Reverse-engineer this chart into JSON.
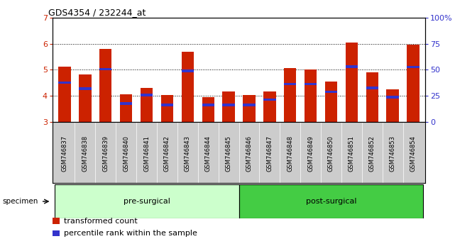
{
  "title": "GDS4354 / 232244_at",
  "samples": [
    "GSM746837",
    "GSM746838",
    "GSM746839",
    "GSM746840",
    "GSM746841",
    "GSM746842",
    "GSM746843",
    "GSM746844",
    "GSM746845",
    "GSM746846",
    "GSM746847",
    "GSM746848",
    "GSM746849",
    "GSM746850",
    "GSM746851",
    "GSM746852",
    "GSM746853",
    "GSM746854"
  ],
  "red_values": [
    5.12,
    4.82,
    5.8,
    4.05,
    4.3,
    4.02,
    5.7,
    3.95,
    4.15,
    4.02,
    4.15,
    5.05,
    5.02,
    4.55,
    6.05,
    4.9,
    4.25,
    5.95
  ],
  "blue_values": [
    4.5,
    4.28,
    5.02,
    3.7,
    4.02,
    3.65,
    4.95,
    3.65,
    3.65,
    3.65,
    3.85,
    4.45,
    4.45,
    4.15,
    5.12,
    4.3,
    3.95,
    5.1
  ],
  "ymin": 3.0,
  "ymax": 7.0,
  "yticks": [
    3,
    4,
    5,
    6,
    7
  ],
  "right_yticks": [
    0,
    25,
    50,
    75,
    100
  ],
  "bar_color": "#cc2200",
  "blue_color": "#3333cc",
  "groups": [
    {
      "label": "pre-surgical",
      "start": 0,
      "end": 9,
      "color": "#ccffcc"
    },
    {
      "label": "post-surgical",
      "start": 9,
      "end": 18,
      "color": "#44cc44"
    }
  ],
  "legend": [
    {
      "label": "transformed count",
      "color": "#cc2200"
    },
    {
      "label": "percentile rank within the sample",
      "color": "#3333cc"
    }
  ],
  "background_color": "#ffffff"
}
